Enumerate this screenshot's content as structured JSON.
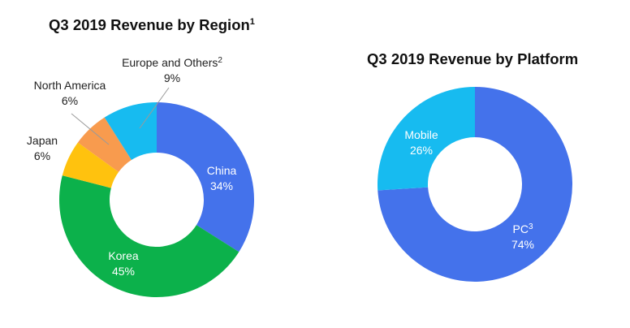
{
  "chart_data": [
    {
      "type": "pie",
      "title": "Q3 2019 Revenue by Region",
      "title_superscript": "1",
      "slices": [
        {
          "label": "China",
          "value": 34,
          "value_label": "34%",
          "color": "#4472EB",
          "label_color": "#ffffff"
        },
        {
          "label": "Korea",
          "value": 45,
          "value_label": "45%",
          "color": "#0CB14B",
          "label_color": "#ffffff"
        },
        {
          "label": "Japan",
          "value": 6,
          "value_label": "6%",
          "color": "#FFC20E",
          "label_color": "#222222"
        },
        {
          "label": "North America",
          "value": 6,
          "value_label": "6%",
          "color": "#F89B4E",
          "label_color": "#222222"
        },
        {
          "label": "Europe and Others",
          "label_superscript": "2",
          "value": 9,
          "value_label": "9%",
          "color": "#17BBF0",
          "label_color": "#222222"
        }
      ]
    },
    {
      "type": "pie",
      "title": "Q3 2019 Revenue by Platform",
      "slices": [
        {
          "label": "PC",
          "label_superscript": "3",
          "value": 74,
          "value_label": "74%",
          "color": "#4472EB",
          "label_color": "#ffffff"
        },
        {
          "label": "Mobile",
          "value": 26,
          "value_label": "26%",
          "color": "#17BBF0",
          "label_color": "#ffffff"
        }
      ]
    }
  ]
}
